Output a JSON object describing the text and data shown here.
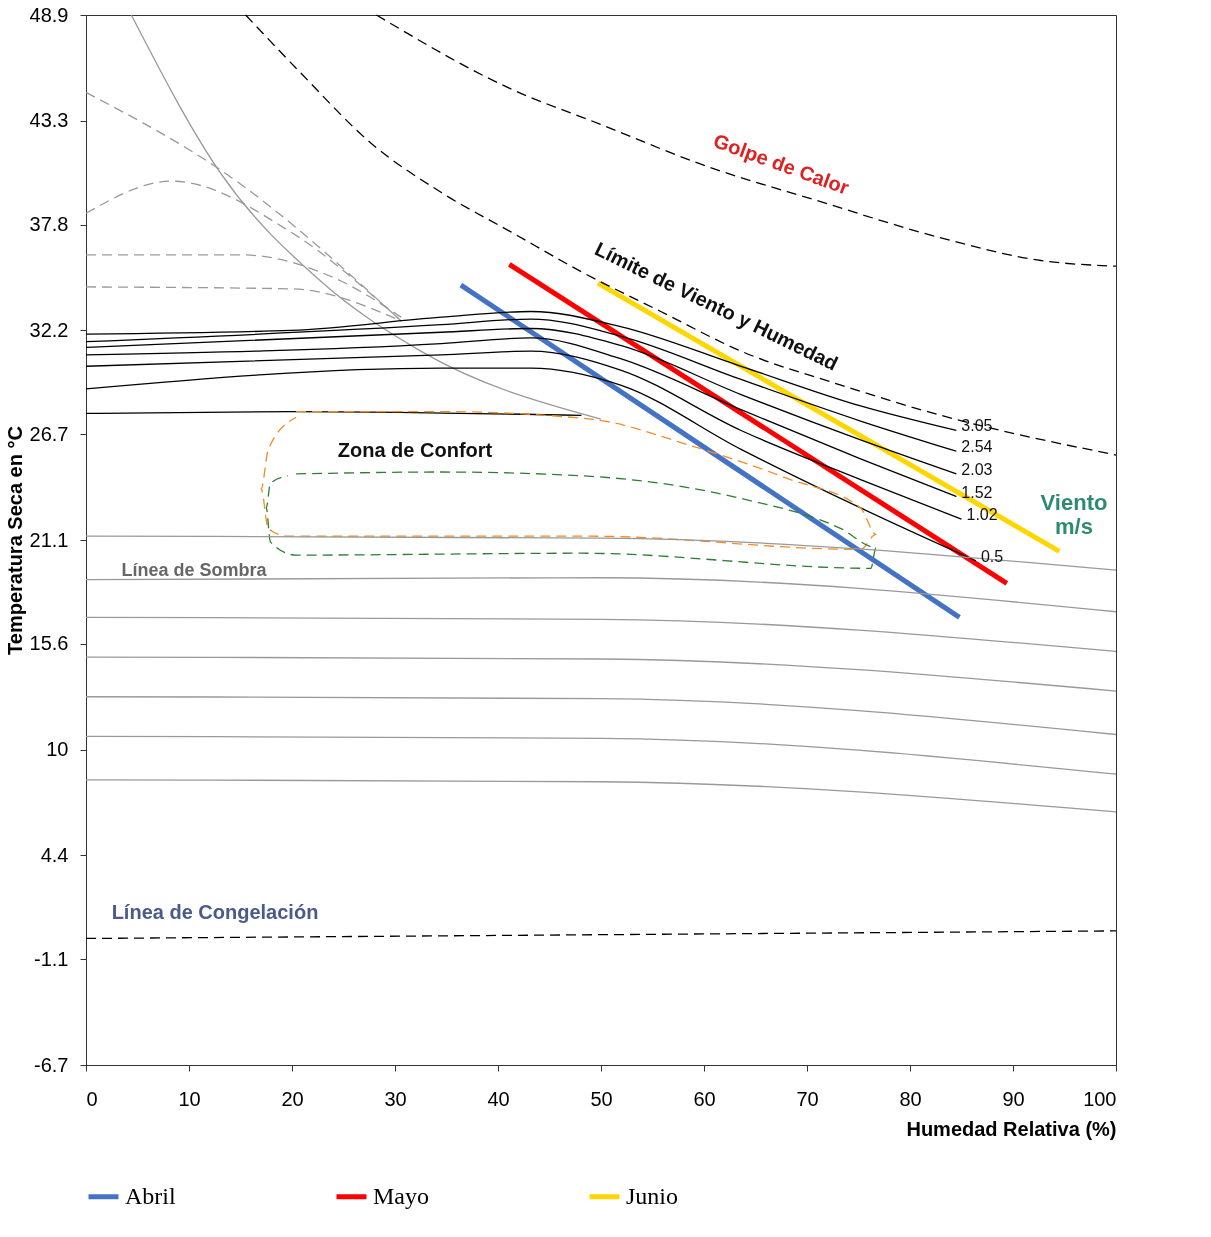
{
  "chart_data": {
    "type": "line",
    "xlabel": "Humedad Relativa (%)",
    "ylabel": "Temperatura Seca en °C",
    "xlim": [
      0,
      100
    ],
    "xticks": [
      0,
      10,
      20,
      30,
      40,
      50,
      60,
      70,
      80,
      90,
      100
    ],
    "ylim": [
      -6.7,
      48.9
    ],
    "yticks": [
      -6.7,
      -1.1,
      4.4,
      10,
      15.6,
      21.1,
      26.7,
      32.2,
      37.8,
      43.3,
      48.9
    ],
    "grid": false,
    "legend": "bottom",
    "series": [
      {
        "color": "#999999",
        "line_style": "dashed",
        "x": [
          0,
          14.1,
          30.6
        ],
        "values": [
          44.8,
          40.3,
          32.7
        ]
      },
      {
        "color": "#999999",
        "line_style": "dashed",
        "x": [
          0,
          8.3,
          19.9,
          30.6
        ],
        "values": [
          38.4,
          40.1,
          37.4,
          32.7
        ]
      },
      {
        "color": "#999999",
        "line_style": "dashed",
        "x": [
          0,
          15.0,
          24.8,
          30.6
        ],
        "values": [
          36.2,
          36.2,
          34.8,
          32.9
        ]
      },
      {
        "color": "#999999",
        "line_style": "dashed",
        "x": [
          0,
          19.9,
          30.6
        ],
        "values": [
          34.5,
          34.4,
          32.7
        ]
      },
      {
        "color": "#999999",
        "line_style": "solid",
        "x": [
          4.4,
          13.1,
          22.8,
          32.5,
          50
        ],
        "values": [
          48.9,
          40.5,
          34.8,
          31.1,
          27.5
        ]
      },
      {
        "color": "#000000",
        "line_style": "dashed",
        "x": [
          28.2,
          41.2,
          50,
          59.7,
          71.4,
          83,
          92.7,
          100
        ],
        "values": [
          48.9,
          45.0,
          43.1,
          41.0,
          39.0,
          37.1,
          35.9,
          35.6
        ]
      },
      {
        "color": "#000000",
        "line_style": "dashed",
        "x": [
          15.5,
          20.9,
          27.7,
          34.5,
          41.3,
          48.1,
          55.8,
          63.6,
          73.3,
          83,
          100
        ],
        "values": [
          48.9,
          45.8,
          42.1,
          39.5,
          37.4,
          35.3,
          33.2,
          31.1,
          29.3,
          27.7,
          25.6
        ]
      },
      {
        "color": "#000000",
        "line_style": "solid",
        "x": [
          0,
          19.9,
          34.5,
          43.2,
          51.9,
          63.6,
          75.2,
          84.5
        ],
        "values": [
          32.0,
          32.2,
          32.9,
          33.2,
          32.4,
          30.3,
          28.2,
          26.9
        ]
      },
      {
        "color": "#000000",
        "line_style": "solid",
        "x": [
          0,
          34.5,
          43.2,
          51.9,
          63.6,
          75.2,
          84.5
        ],
        "values": [
          31.6,
          32.5,
          32.8,
          31.9,
          29.6,
          27.4,
          25.8
        ]
      },
      {
        "color": "#000000",
        "line_style": "solid",
        "x": [
          0,
          34.5,
          43.2,
          51.9,
          63.6,
          75.2,
          84.5
        ],
        "values": [
          31.3,
          32.1,
          32.3,
          31.4,
          28.8,
          26.4,
          24.6
        ]
      },
      {
        "color": "#000000",
        "line_style": "solid",
        "x": [
          0,
          34.5,
          43.2,
          51.9,
          63.6,
          75.2,
          84.5
        ],
        "values": [
          30.9,
          31.5,
          31.8,
          30.7,
          28.0,
          25.4,
          23.4
        ]
      },
      {
        "color": "#000000",
        "line_style": "solid",
        "x": [
          0,
          34.5,
          43.2,
          51.9,
          63.6,
          75.2,
          85.0
        ],
        "values": [
          30.3,
          30.9,
          31.1,
          30.1,
          26.9,
          24.3,
          22.2
        ]
      },
      {
        "color": "#000000",
        "line_style": "solid",
        "x": [
          0,
          34.5,
          43.2,
          51.9,
          63.6,
          75.2,
          86.4
        ],
        "values": [
          29.1,
          30.2,
          30.2,
          29.3,
          25.9,
          22.8,
          20.0
        ]
      },
      {
        "color": "#000000",
        "line_style": "solid",
        "x": [
          0,
          19.9,
          48.1
        ],
        "values": [
          27.8,
          27.9,
          27.7
        ]
      },
      {
        "color": "#f28c28",
        "line_style": "dashed",
        "x": [
          20.4,
          34.5,
          49,
          58.7,
          68.4,
          75.2,
          76.7,
          75.2,
          49,
          19.7,
          17.7,
          17.0,
          17.7,
          20.4
        ],
        "values": [
          27.9,
          27.9,
          27.5,
          26.1,
          24.3,
          22.8,
          21.4,
          20.6,
          21.3,
          21.3,
          21.7,
          23.8,
          25.9,
          27.6
        ]
      },
      {
        "color": "#2e7d32",
        "line_style": "dashed",
        "x": [
          20.4,
          34.5,
          48.1,
          63.6,
          73.3,
          76.7,
          76.2,
          48.1,
          20.4,
          17.9,
          17.5,
          17.9,
          19.6
        ],
        "values": [
          24.6,
          24.7,
          24.5,
          23.3,
          21.7,
          20.7,
          19.6,
          20.4,
          20.3,
          21.0,
          22.8,
          24.1,
          24.5
        ]
      },
      {
        "color": "#999999",
        "line_style": "solid",
        "x": [
          0,
          50,
          100
        ],
        "values": [
          21.3,
          21.2,
          19.5
        ]
      },
      {
        "color": "#999999",
        "line_style": "solid",
        "x": [
          0,
          50,
          100
        ],
        "values": [
          19.0,
          19.1,
          17.3
        ]
      },
      {
        "color": "#999999",
        "line_style": "solid",
        "x": [
          0,
          50,
          100
        ],
        "values": [
          17.0,
          16.9,
          15.2
        ]
      },
      {
        "color": "#999999",
        "line_style": "solid",
        "x": [
          0,
          50,
          100
        ],
        "values": [
          14.9,
          14.8,
          13.1
        ]
      },
      {
        "color": "#999999",
        "line_style": "solid",
        "x": [
          0,
          50,
          100
        ],
        "values": [
          12.8,
          12.7,
          10.8
        ]
      },
      {
        "color": "#999999",
        "line_style": "solid",
        "x": [
          0,
          50,
          100
        ],
        "values": [
          10.7,
          10.6,
          8.7
        ]
      },
      {
        "color": "#999999",
        "line_style": "solid",
        "x": [
          0,
          50,
          100
        ],
        "values": [
          8.4,
          8.3,
          6.7
        ]
      },
      {
        "color": "#000000",
        "line_style": "dashed",
        "x": [
          0,
          100
        ],
        "values": [
          0.0,
          0.4
        ]
      },
      {
        "name": "Abril",
        "color": "#4472c4",
        "line_style": "solid",
        "x": [
          36.4,
          84.8
        ],
        "values": [
          34.6,
          17.0
        ]
      },
      {
        "name": "Mayo",
        "color": "#ff0000",
        "line_style": "solid",
        "x": [
          41.1,
          89.4
        ],
        "values": [
          35.7,
          18.8
        ]
      },
      {
        "name": "Junio",
        "color": "#ffd700",
        "line_style": "solid",
        "x": [
          49.7,
          94.5
        ],
        "values": [
          34.7,
          20.5
        ]
      }
    ],
    "annotations": [
      "Golpe de Calor",
      "Límite de Viento y Humedad",
      "Zona de Confort",
      "Línea de Sombra",
      "Línea de Congelación",
      "Viento m/s",
      {
        "text": "3.05",
        "x": 84.5,
        "y": 26.9
      },
      {
        "text": "2.54",
        "x": 84.5,
        "y": 25.8
      },
      {
        "text": "2.03",
        "x": 84.5,
        "y": 24.6
      },
      {
        "text": "1.52",
        "x": 84.5,
        "y": 23.4
      },
      {
        "text": "1.02",
        "x": 85.0,
        "y": 22.2
      },
      {
        "text": "0.5",
        "x": 86.4,
        "y": 20.0
      }
    ]
  }
}
